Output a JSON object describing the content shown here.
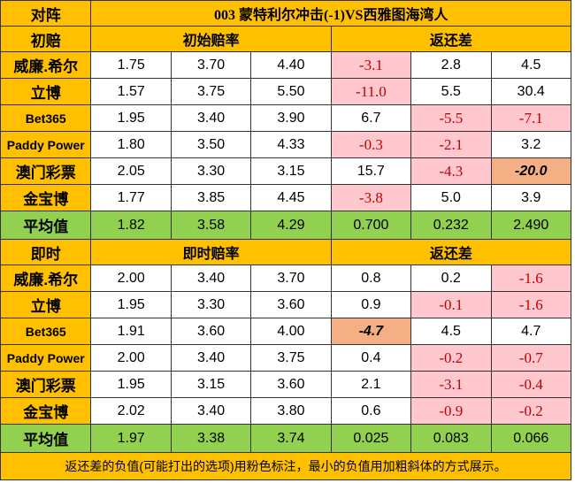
{
  "header": {
    "corner_label": "对阵",
    "match_title": "003 蒙特利尔冲击(-1)VS西雅图海湾人"
  },
  "initial": {
    "section_label": "初赔",
    "odds_header": "初始赔率",
    "return_header": "返还差",
    "rows": [
      {
        "bookmaker": "威廉.希尔",
        "o1": "1.75",
        "o2": "3.70",
        "o3": "4.40",
        "d1": "-3.1",
        "d2": "2.8",
        "d3": "4.5"
      },
      {
        "bookmaker": "立博",
        "o1": "1.57",
        "o2": "3.75",
        "o3": "5.50",
        "d1": "-11.0",
        "d2": "5.5",
        "d3": "30.4"
      },
      {
        "bookmaker": "Bet365",
        "o1": "1.95",
        "o2": "3.40",
        "o3": "3.90",
        "d1": "6.7",
        "d2": "-5.5",
        "d3": "-7.1"
      },
      {
        "bookmaker": "Paddy Power",
        "o1": "1.80",
        "o2": "3.50",
        "o3": "4.33",
        "d1": "-0.3",
        "d2": "-2.1",
        "d3": "3.2"
      },
      {
        "bookmaker": "澳门彩票",
        "o1": "2.05",
        "o2": "3.30",
        "o3": "3.15",
        "d1": "15.7",
        "d2": "-4.3",
        "d3": "-20.0"
      },
      {
        "bookmaker": "金宝博",
        "o1": "1.77",
        "o2": "3.85",
        "o3": "4.45",
        "d1": "-3.8",
        "d2": "5.0",
        "d3": "3.9"
      }
    ],
    "average": {
      "label": "平均值",
      "o1": "1.82",
      "o2": "3.58",
      "o3": "4.29",
      "d1": "0.700",
      "d2": "0.232",
      "d3": "2.490"
    }
  },
  "live": {
    "section_label": "即时",
    "odds_header": "即时赔率",
    "return_header": "返还差",
    "rows": [
      {
        "bookmaker": "威廉.希尔",
        "o1": "2.00",
        "o2": "3.40",
        "o3": "3.70",
        "d1": "0.8",
        "d2": "0.2",
        "d3": "-1.6"
      },
      {
        "bookmaker": "立博",
        "o1": "1.95",
        "o2": "3.30",
        "o3": "3.60",
        "d1": "0.9",
        "d2": "-0.1",
        "d3": "-1.6"
      },
      {
        "bookmaker": "Bet365",
        "o1": "1.91",
        "o2": "3.60",
        "o3": "4.00",
        "d1": "-4.7",
        "d2": "4.5",
        "d3": "4.7"
      },
      {
        "bookmaker": "Paddy Power",
        "o1": "2.00",
        "o2": "3.40",
        "o3": "3.75",
        "d1": "0.4",
        "d2": "-0.2",
        "d3": "-0.7"
      },
      {
        "bookmaker": "澳门彩票",
        "o1": "1.95",
        "o2": "3.15",
        "o3": "3.60",
        "d1": "2.1",
        "d2": "-3.1",
        "d3": "-0.4"
      },
      {
        "bookmaker": "金宝博",
        "o1": "2.02",
        "o2": "3.40",
        "o3": "3.80",
        "d1": "0.6",
        "d2": "-0.9",
        "d3": "-0.2"
      }
    ],
    "average": {
      "label": "平均值",
      "o1": "1.97",
      "o2": "3.38",
      "o3": "3.74",
      "d1": "0.025",
      "d2": "0.083",
      "d3": "0.066"
    }
  },
  "footnote": "返还差的负值(可能打出的选项)用粉色标注，最小的负值用加粗斜体的方式展示。",
  "colors": {
    "header_bg": "#ffc000",
    "average_bg": "#92d050",
    "negative_bg": "#ffc7ce",
    "negative_text": "#c00000",
    "minimum_bg": "#f4b084"
  }
}
